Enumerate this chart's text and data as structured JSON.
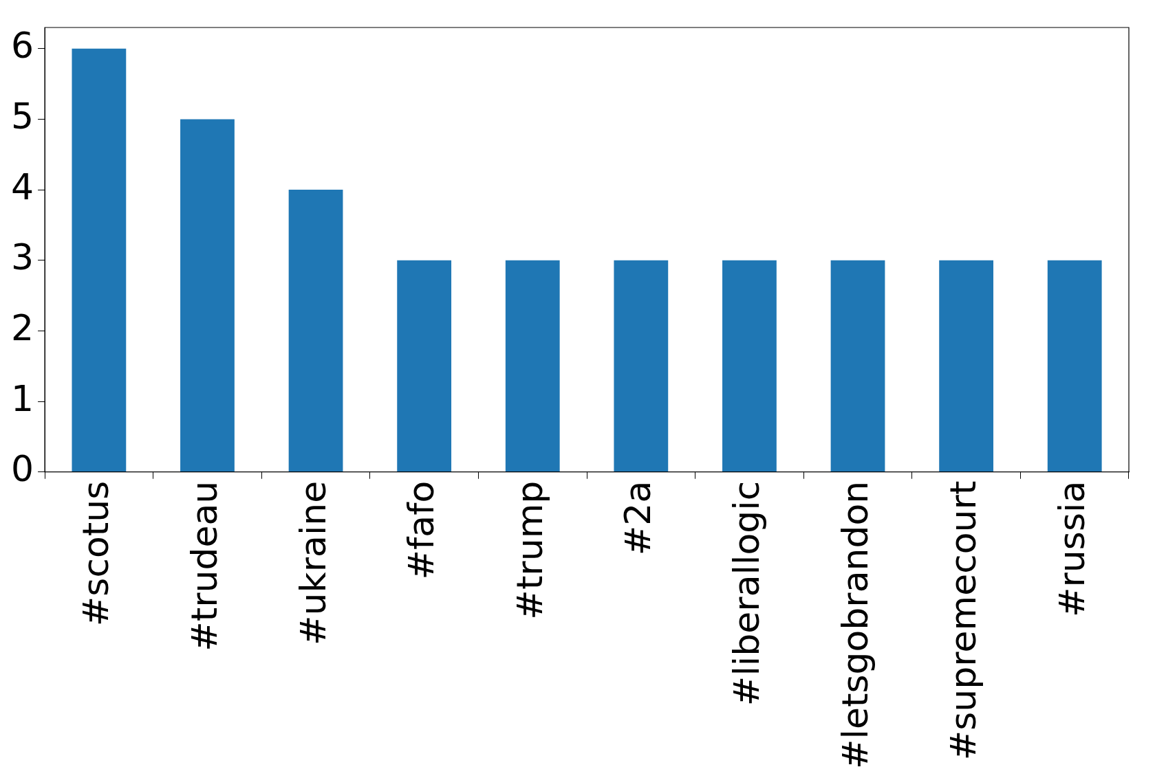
{
  "chart_data": {
    "type": "bar",
    "categories": [
      "#scotus",
      "#trudeau",
      "#ukraine",
      "#fafo",
      "#trump",
      "#2a",
      "#liberallogic",
      "#letsgobrandon",
      "#supremecourt",
      "#russia"
    ],
    "values": [
      6,
      5,
      4,
      3,
      3,
      3,
      3,
      3,
      3,
      3
    ],
    "color": "#1f77b4",
    "ylim": [
      0,
      6.3
    ],
    "yticks": [
      0,
      1,
      2,
      3,
      4,
      5,
      6
    ],
    "grid": false
  }
}
